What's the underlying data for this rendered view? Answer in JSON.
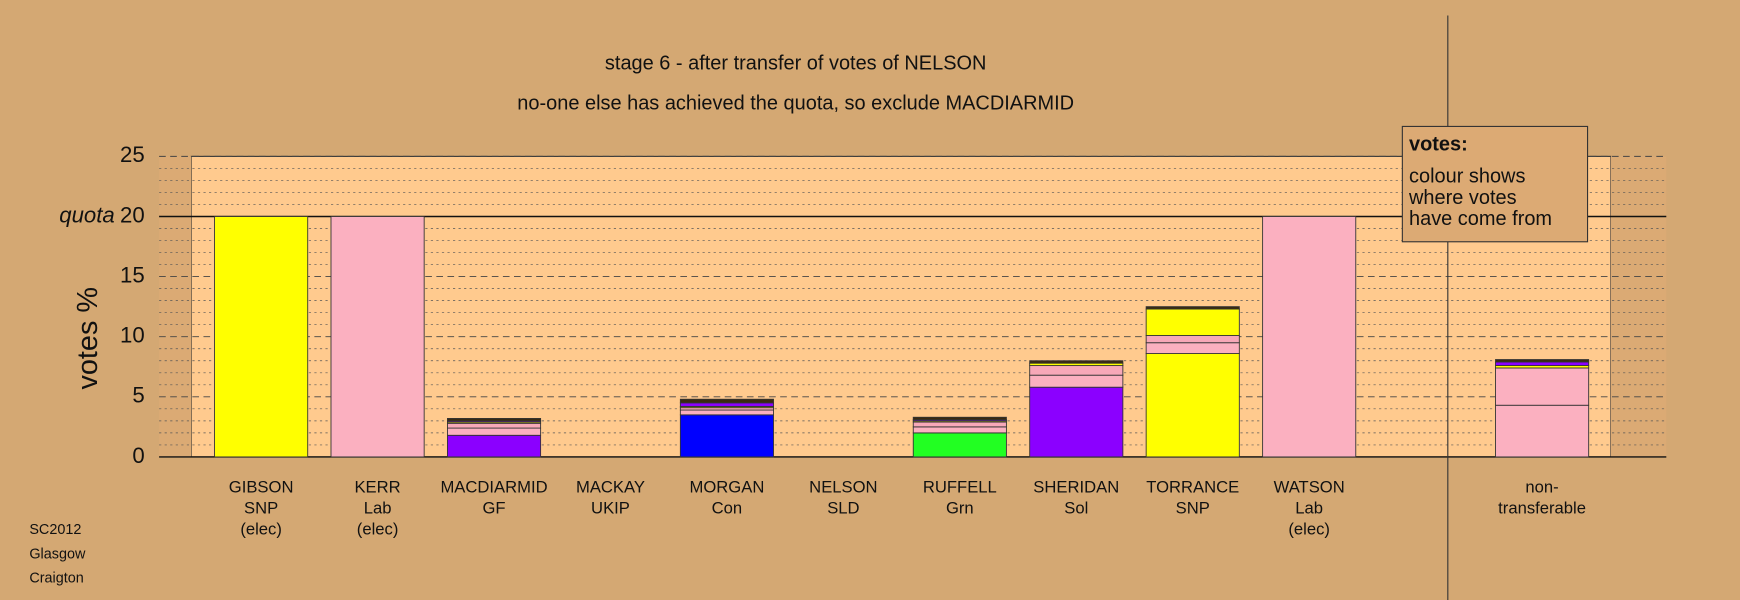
{
  "chart_data": {
    "type": "bar",
    "stacked": true,
    "title": "stage 6 - after transfer of votes of NELSON",
    "subtitle": "no-one else has achieved the quota, so exclude MACDIARMID",
    "y_label": "votes %",
    "quota": 20,
    "quota_label": "quota",
    "ylim": [
      0,
      25
    ],
    "yticks": [
      0,
      5,
      10,
      15,
      20,
      25
    ],
    "minor_yticks": [
      1,
      2,
      3,
      4,
      6,
      7,
      8,
      9,
      11,
      12,
      13,
      14,
      16,
      17,
      18,
      19,
      21,
      22,
      23,
      24
    ],
    "grid": true,
    "categories": [
      [
        "GIBSON",
        "SNP",
        "(elec)"
      ],
      [
        "KERR",
        "Lab",
        "(elec)"
      ],
      [
        "MACDIARMID",
        "GF"
      ],
      [
        "MACKAY",
        "UKIP"
      ],
      [
        "MORGAN",
        "Con"
      ],
      [
        "NELSON",
        "SLD"
      ],
      [
        "RUFFELL",
        "Grn"
      ],
      [
        "SHERIDAN",
        "Sol"
      ],
      [
        "TORRANCE",
        "SNP"
      ],
      [
        "WATSON",
        "Lab",
        "(elec)"
      ],
      null,
      [
        "non-",
        "transferable"
      ]
    ],
    "series": [
      {
        "color": "#ffff00",
        "values": [
          20,
          null,
          null,
          0,
          null,
          0,
          null,
          null,
          8.6,
          null,
          null,
          null
        ]
      },
      {
        "color": "#fbb0c0",
        "values": [
          null,
          20,
          null,
          null,
          null,
          null,
          null,
          null,
          null,
          20,
          null,
          4.3
        ]
      },
      {
        "color": "#8b00ff",
        "values": [
          null,
          null,
          1.8,
          null,
          null,
          null,
          null,
          5.8,
          null,
          null,
          null,
          null
        ]
      },
      {
        "color": "#0000ff",
        "values": [
          null,
          null,
          null,
          null,
          3.5,
          null,
          null,
          null,
          null,
          null,
          null,
          null
        ]
      },
      {
        "color": "#22ff22",
        "values": [
          null,
          null,
          null,
          null,
          null,
          null,
          2.0,
          null,
          null,
          null,
          null,
          null
        ]
      },
      {
        "color": "#fbb0c0",
        "values": [
          null,
          null,
          0.6,
          null,
          0.4,
          null,
          0.5,
          1.0,
          0.9,
          null,
          null,
          3.1
        ]
      },
      {
        "color": "#f7a8b8",
        "values": [
          null,
          null,
          0.4,
          null,
          0.2,
          null,
          0.4,
          0.8,
          0.6,
          null,
          null,
          null
        ]
      },
      {
        "color": "#ffff00",
        "values": [
          null,
          null,
          0.1,
          null,
          0.1,
          null,
          0.1,
          0.2,
          2.2,
          null,
          null,
          0.2
        ]
      },
      {
        "color": "#8b00ff",
        "values": [
          null,
          null,
          0.1,
          null,
          0.3,
          null,
          0.1,
          null,
          null,
          null,
          null,
          0.3
        ]
      },
      {
        "color": "#3a2a10",
        "values": [
          null,
          null,
          0.2,
          null,
          0.3,
          null,
          0.2,
          0.2,
          0.2,
          null,
          null,
          0.2
        ]
      }
    ],
    "legend_title": "votes:",
    "legend_lines": [
      "colour shows",
      "where votes",
      "have come from"
    ],
    "footnote": [
      "SC2012",
      "Glasgow",
      "Craigton"
    ]
  }
}
